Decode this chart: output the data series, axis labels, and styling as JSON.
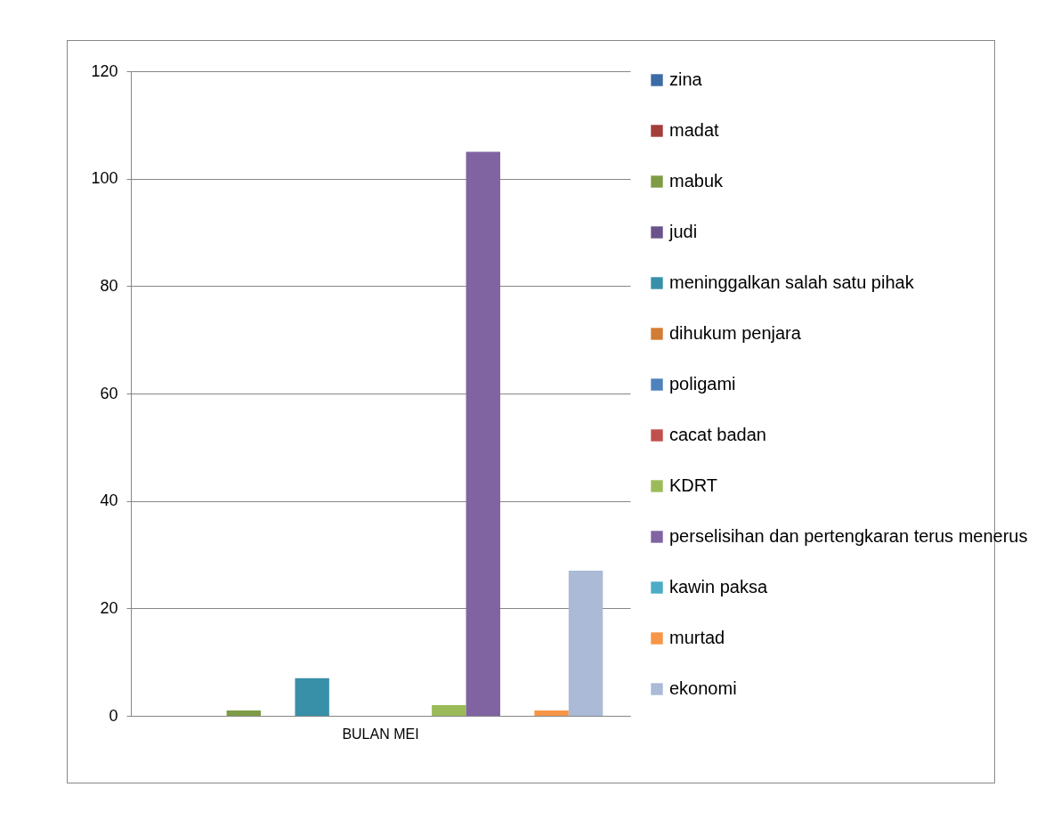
{
  "chart_data": {
    "type": "bar",
    "categories": [
      "BULAN MEI"
    ],
    "series": [
      {
        "name": "zina",
        "color": "#3c6ca6",
        "values": [
          0
        ]
      },
      {
        "name": "madat",
        "color": "#a33e3b",
        "values": [
          0
        ]
      },
      {
        "name": "mabuk",
        "color": "#7e9c45",
        "values": [
          1
        ]
      },
      {
        "name": "judi",
        "color": "#6a538a",
        "values": [
          0
        ]
      },
      {
        "name": "meninggalkan salah satu pihak",
        "color": "#3890a8",
        "values": [
          7
        ]
      },
      {
        "name": "dihukum penjara",
        "color": "#d27d35",
        "values": [
          0
        ]
      },
      {
        "name": "poligami",
        "color": "#4f81bd",
        "values": [
          0
        ]
      },
      {
        "name": "cacat badan",
        "color": "#c0504d",
        "values": [
          0
        ]
      },
      {
        "name": "KDRT",
        "color": "#9bbb59",
        "values": [
          2
        ]
      },
      {
        "name": "perselisihan dan pertengkaran terus menerus",
        "color": "#8064a2",
        "values": [
          105
        ]
      },
      {
        "name": "kawin paksa",
        "color": "#4bacc6",
        "values": [
          0
        ]
      },
      {
        "name": "murtad",
        "color": "#f79646",
        "values": [
          1
        ]
      },
      {
        "name": "ekonomi",
        "color": "#aabad7",
        "values": [
          27
        ]
      }
    ],
    "ylim": [
      0,
      120
    ],
    "yticks": [
      0,
      20,
      40,
      60,
      80,
      100,
      120
    ],
    "grid": "y",
    "legend": "right"
  }
}
